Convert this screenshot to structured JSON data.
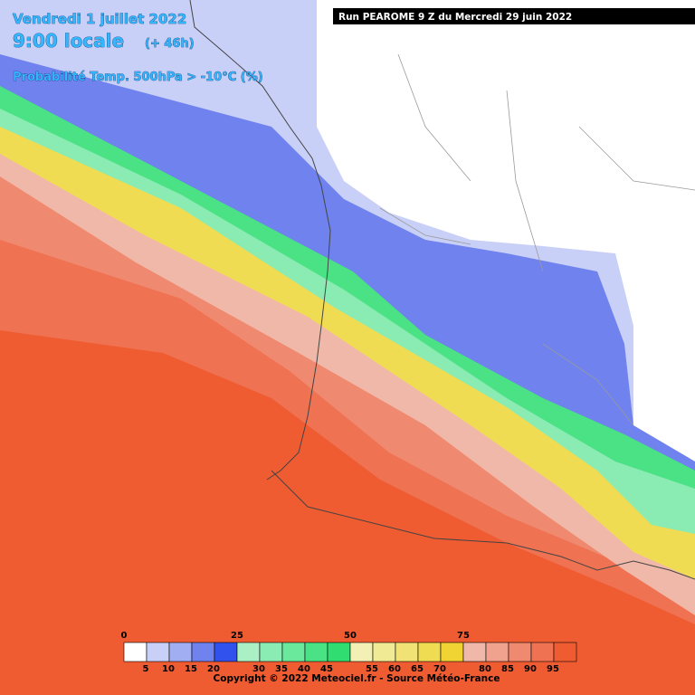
{
  "header": {
    "date": "Vendredi 1 juillet 2022",
    "time": "9:00 locale",
    "lead": "(+ 46h)",
    "parameter": "Probabilité Temp. 500hPa > -10°C (%)",
    "run": "Run PEAROME 9 Z du Mercredi 29 juin 2022"
  },
  "legend": {
    "levels": [
      0,
      5,
      10,
      15,
      20,
      25,
      30,
      35,
      40,
      45,
      50,
      55,
      60,
      65,
      70,
      75,
      80,
      85,
      90,
      95
    ],
    "colors": [
      "#ffffff",
      "#c9d0f8",
      "#a2aef2",
      "#6f82ee",
      "#3252ee",
      "#aaf0c4",
      "#8aecb2",
      "#6ae89c",
      "#4ae284",
      "#30dd70",
      "#f2f0b4",
      "#f0ea94",
      "#f0e274",
      "#f0dc52",
      "#f0d434",
      "#f0b8a8",
      "#f0a28e",
      "#ef8a70",
      "#ef7252",
      "#ef5c32"
    ]
  },
  "footer": {
    "copyright": "Copyright © 2022 Meteociel.fr - Source Météo-France"
  }
}
